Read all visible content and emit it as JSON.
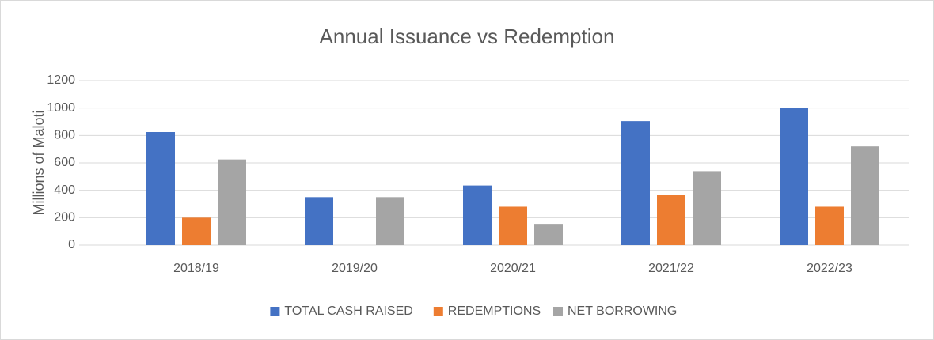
{
  "chart_data": {
    "type": "bar",
    "title": "Annual Issuance vs Redemption",
    "y_label": "Millions of Maloti",
    "categories": [
      "2018/19",
      "2019/20",
      "2020/21",
      "2021/22",
      "2022/23"
    ],
    "series": [
      {
        "name": "TOTAL CASH RAISED",
        "color": "#4472c4",
        "values": [
          825,
          350,
          435,
          905,
          1000
        ]
      },
      {
        "name": "REDEMPTIONS",
        "color": "#ed7d31",
        "values": [
          200,
          0,
          280,
          365,
          280
        ]
      },
      {
        "name": "NET BORROWING",
        "color": "#a5a5a5",
        "values": [
          625,
          350,
          155,
          540,
          720
        ]
      }
    ],
    "ylim": [
      0,
      1200
    ],
    "yticks": [
      0,
      200,
      400,
      600,
      800,
      1000,
      1200
    ],
    "grid": true,
    "legend": "bottom"
  }
}
